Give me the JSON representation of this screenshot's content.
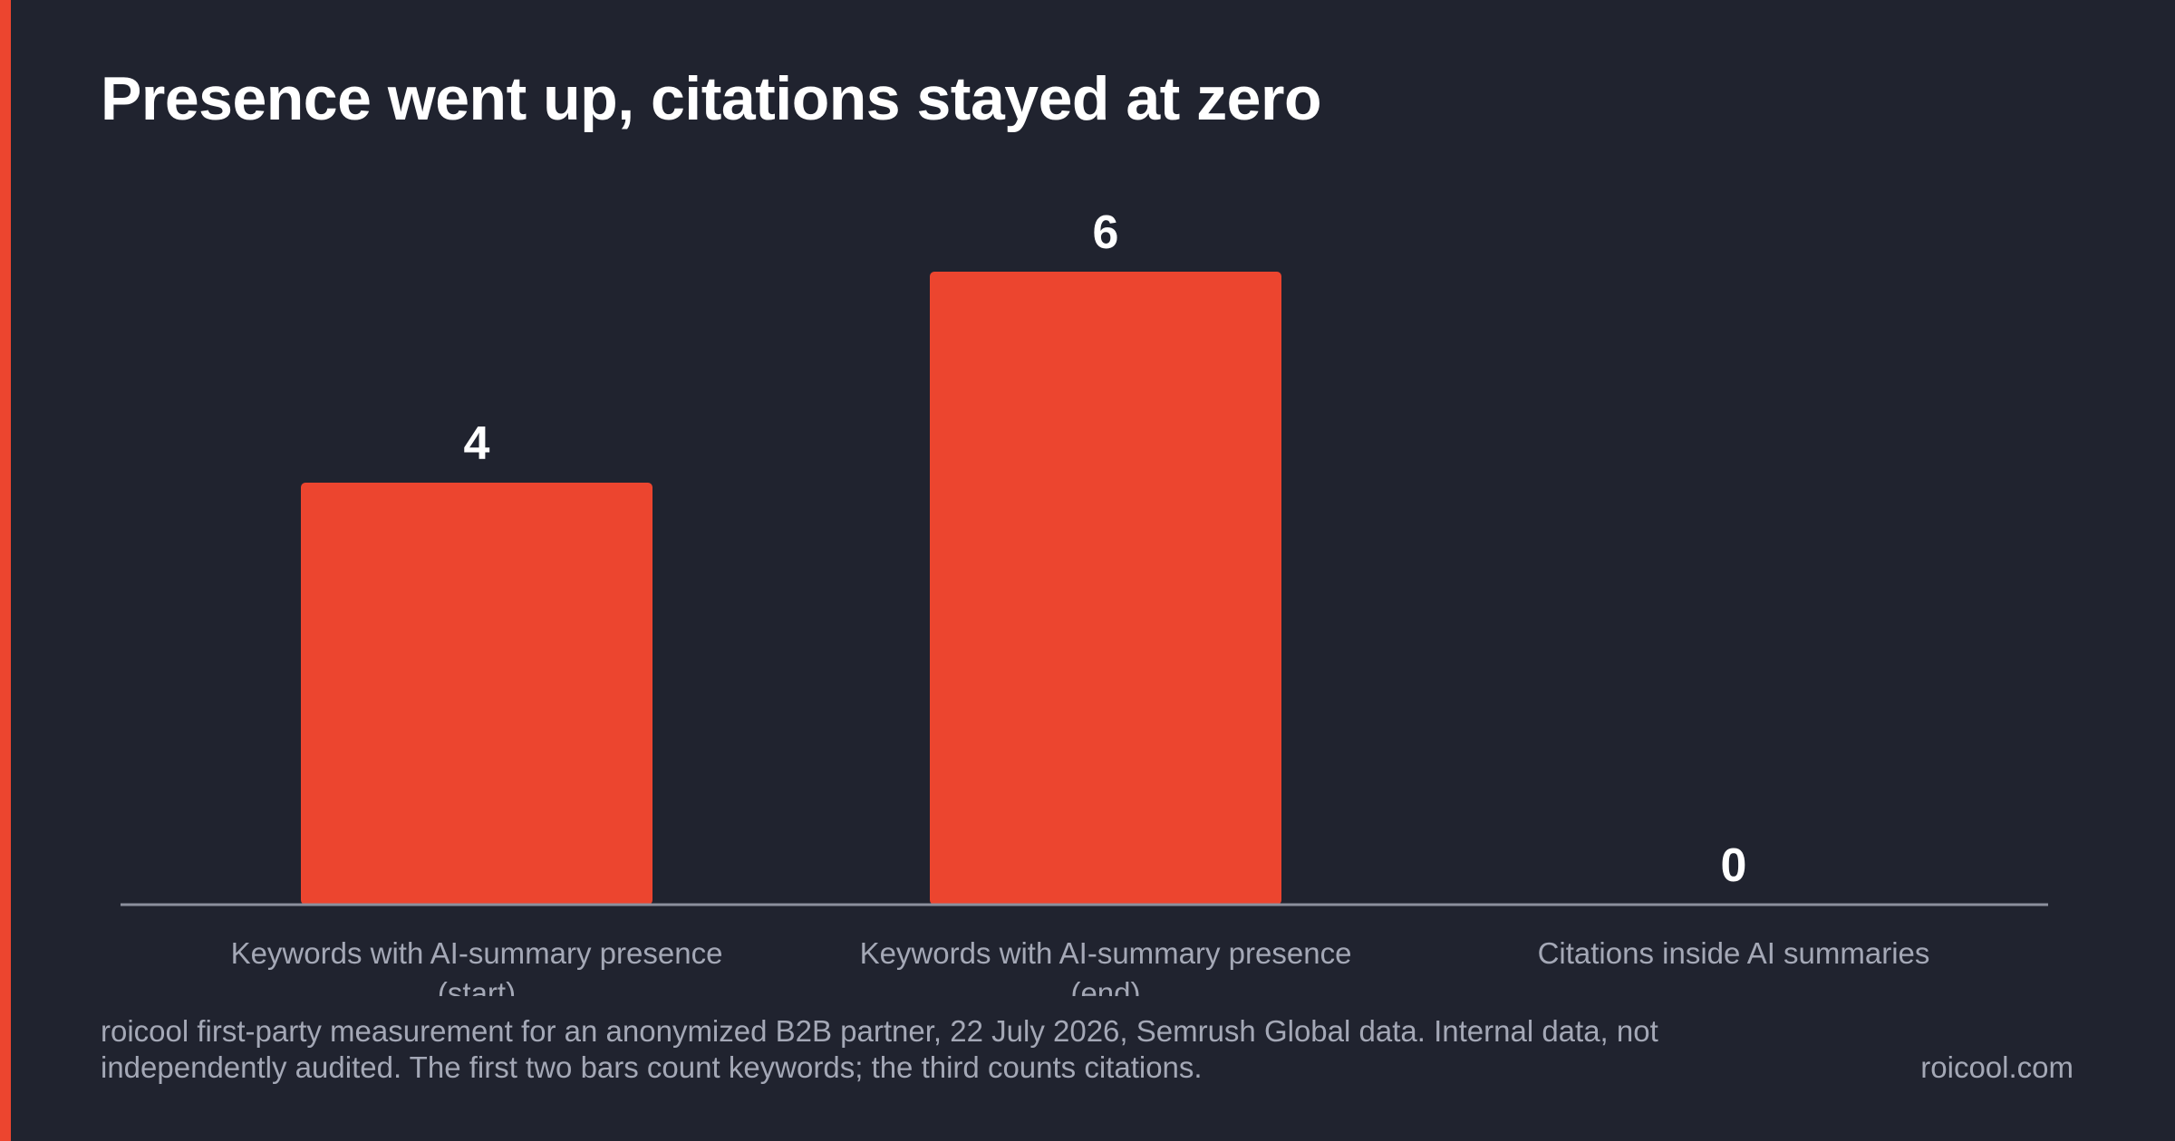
{
  "title": "Presence went up, citations stayed at zero",
  "footnote": "roicool first-party measurement for an anonymized B2B partner, 22 July 2026, Semrush Global data. Internal data, not independently audited. The first two bars count keywords; the third counts citations.",
  "brand": "roicool.com",
  "colors": {
    "background": "#20232f",
    "accent": "#ec452f",
    "bar": "#ec452f",
    "axis": "#8c909e",
    "label": "#a4a8b6",
    "value_label": "#ffffff"
  },
  "chart_data": {
    "type": "bar",
    "categories": [
      [
        "Keywords with AI-summary presence",
        "(start)"
      ],
      [
        "Keywords with AI-summary presence",
        "(end)"
      ],
      [
        "Citations inside AI summaries"
      ]
    ],
    "values": [
      4,
      6,
      0
    ],
    "data_labels": [
      "4",
      "6",
      "0"
    ],
    "ylim": [
      0,
      6
    ],
    "grid": false,
    "legend": "none"
  }
}
